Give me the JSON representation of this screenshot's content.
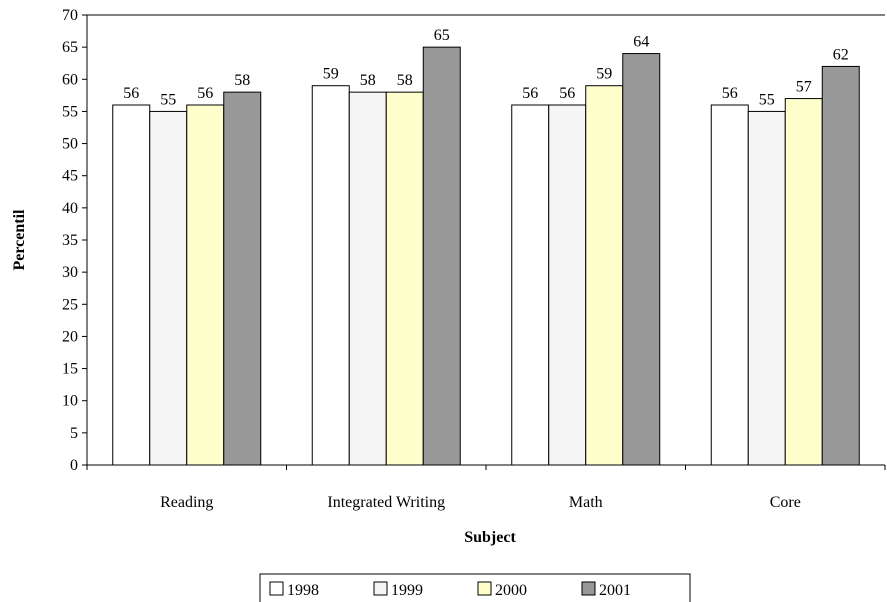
{
  "chart_data": {
    "type": "bar",
    "title": "",
    "xlabel": "Subject",
    "ylabel": "Percentil",
    "ylim": [
      0,
      70
    ],
    "ytick_step": 5,
    "grid": false,
    "legend_position": "bottom",
    "categories": [
      "Reading",
      "Integrated Writing",
      "Math",
      "Core"
    ],
    "series": [
      {
        "name": "1998",
        "color": "#ffffff",
        "values": [
          56,
          59,
          56,
          56
        ]
      },
      {
        "name": "1999",
        "color": "#f5f5f5",
        "values": [
          55,
          58,
          56,
          55
        ]
      },
      {
        "name": "2000",
        "color": "#ffffcc",
        "values": [
          56,
          58,
          59,
          57
        ]
      },
      {
        "name": "2001",
        "color": "#999999",
        "values": [
          58,
          65,
          64,
          62
        ]
      }
    ]
  }
}
